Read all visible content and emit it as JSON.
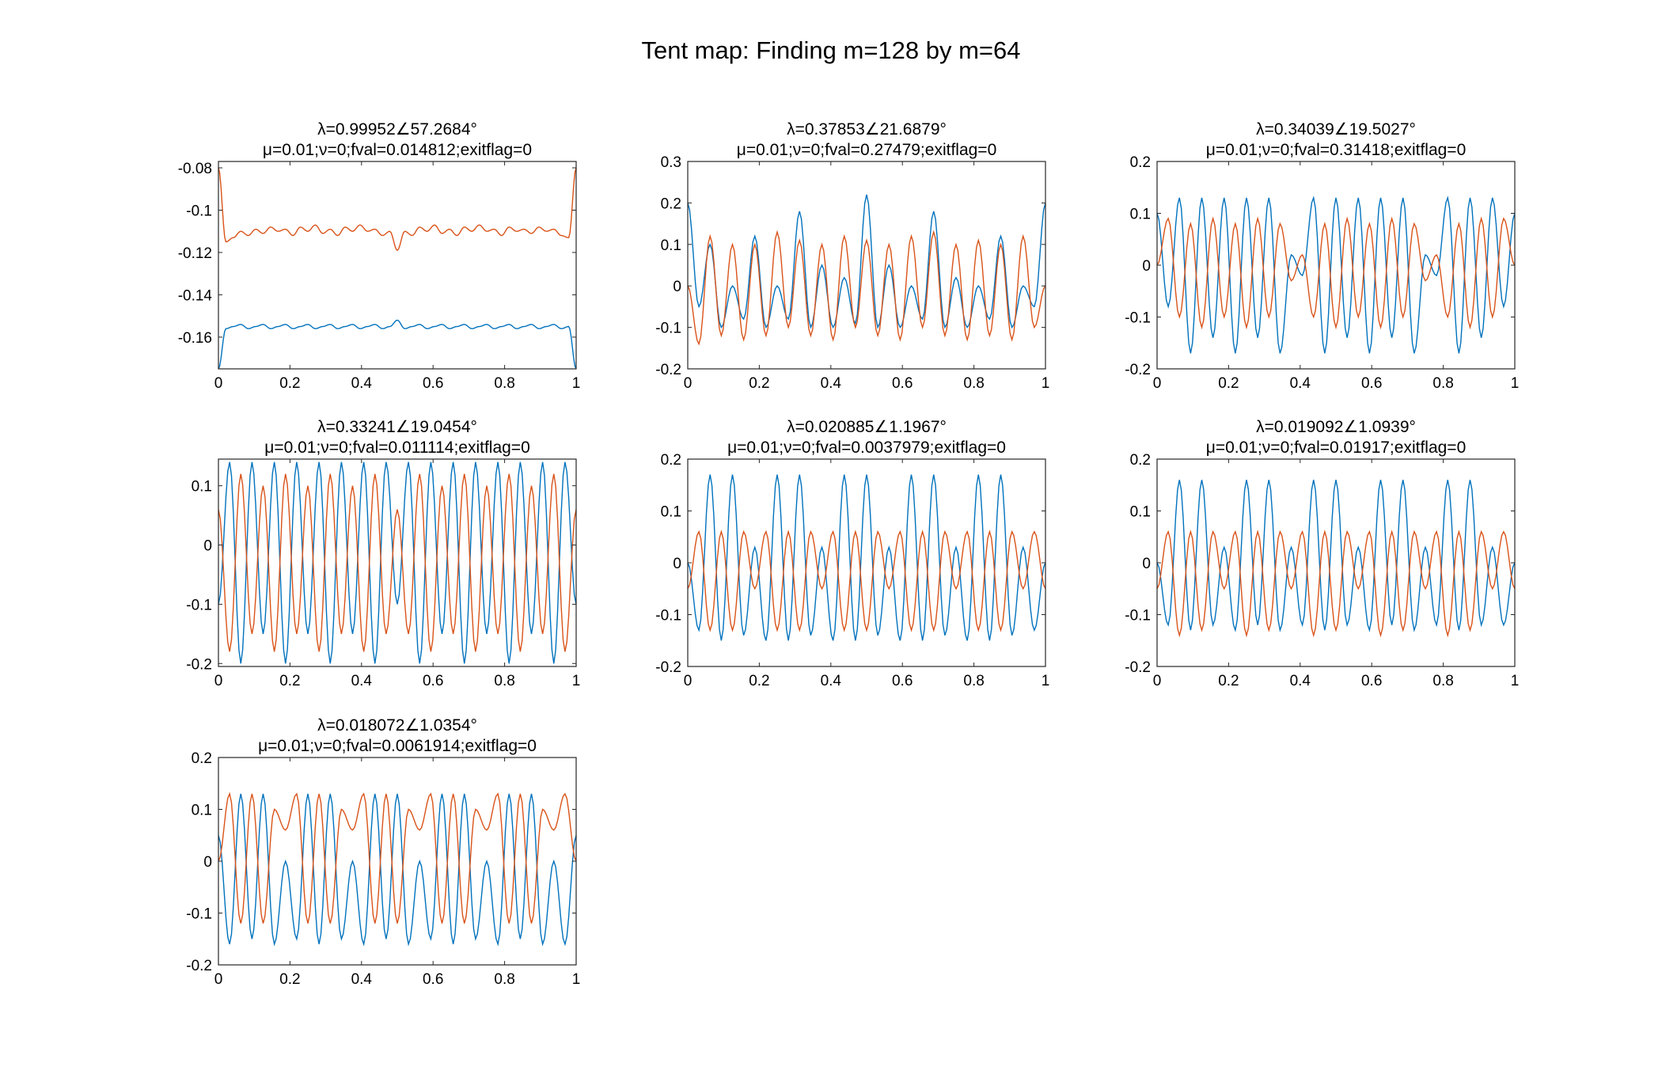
{
  "figure": {
    "suptitle": "Tent map: Finding m=128 by m=64"
  },
  "colors": {
    "series_blue": "#0072BD",
    "series_orange": "#D95319",
    "axes": "#262626",
    "background": "#ffffff"
  },
  "chart_data": [
    {
      "type": "line",
      "title": [
        "λ=0.99952∠57.2684°",
        "μ=0.01;ν=0;fval=0.014812;exitflag=0"
      ],
      "xlim": [
        0,
        1
      ],
      "ylim": [
        -0.175,
        -0.077
      ],
      "xticks": [
        0,
        0.2,
        0.4,
        0.6,
        0.8,
        1
      ],
      "yticks": [
        -0.16,
        -0.14,
        -0.12,
        -0.1,
        -0.08
      ],
      "series": [
        {
          "color": "blue",
          "values": [
            -0.175,
            -0.156,
            -0.155,
            -0.154,
            -0.156,
            -0.155,
            -0.154,
            -0.156,
            -0.155,
            -0.154,
            -0.156,
            -0.155,
            -0.154,
            -0.156,
            -0.155,
            -0.154,
            -0.156,
            -0.155,
            -0.154,
            -0.156,
            -0.155,
            -0.154,
            -0.156,
            -0.155,
            -0.152,
            -0.156,
            -0.155,
            -0.154,
            -0.156,
            -0.155,
            -0.154,
            -0.156,
            -0.155,
            -0.154,
            -0.156,
            -0.155,
            -0.154,
            -0.156,
            -0.155,
            -0.154,
            -0.156,
            -0.155,
            -0.154,
            -0.156,
            -0.155,
            -0.154,
            -0.156,
            -0.155,
            -0.175
          ]
        },
        {
          "color": "orange",
          "values": [
            -0.08,
            -0.115,
            -0.113,
            -0.11,
            -0.112,
            -0.109,
            -0.111,
            -0.108,
            -0.11,
            -0.109,
            -0.112,
            -0.108,
            -0.11,
            -0.107,
            -0.111,
            -0.109,
            -0.112,
            -0.108,
            -0.11,
            -0.107,
            -0.11,
            -0.109,
            -0.112,
            -0.11,
            -0.119,
            -0.11,
            -0.112,
            -0.108,
            -0.11,
            -0.107,
            -0.111,
            -0.109,
            -0.112,
            -0.108,
            -0.11,
            -0.107,
            -0.11,
            -0.109,
            -0.112,
            -0.108,
            -0.11,
            -0.109,
            -0.111,
            -0.108,
            -0.11,
            -0.109,
            -0.112,
            -0.113,
            -0.08
          ]
        }
      ]
    },
    {
      "type": "line",
      "title": [
        "λ=0.37853∠21.6879°",
        "μ=0.01;ν=0;fval=0.27479;exitflag=0"
      ],
      "xlim": [
        0,
        1
      ],
      "ylim": [
        -0.2,
        0.3
      ],
      "xticks": [
        0,
        0.2,
        0.4,
        0.6,
        0.8,
        1
      ],
      "yticks": [
        -0.2,
        -0.1,
        0,
        0.1,
        0.2,
        0.3
      ],
      "series": [
        {
          "color": "blue",
          "values": [
            0.2,
            -0.05,
            0.1,
            -0.1,
            0.0,
            -0.08,
            0.12,
            -0.1,
            0.0,
            -0.08,
            0.18,
            -0.1,
            0.05,
            -0.1,
            0.02,
            -0.09,
            0.22,
            -0.1,
            0.05,
            -0.1,
            0.0,
            -0.08,
            0.18,
            -0.1,
            0.02,
            -0.1,
            0.0,
            -0.08,
            0.12,
            -0.1,
            0.0,
            -0.05,
            0.2
          ]
        },
        {
          "color": "orange",
          "values": [
            0.0,
            -0.14,
            0.12,
            -0.12,
            0.1,
            -0.13,
            0.1,
            -0.12,
            0.13,
            -0.1,
            0.11,
            -0.12,
            0.1,
            -0.13,
            0.12,
            -0.1,
            0.11,
            -0.12,
            0.1,
            -0.13,
            0.12,
            -0.1,
            0.13,
            -0.12,
            0.1,
            -0.13,
            0.11,
            -0.12,
            0.1,
            -0.13,
            0.12,
            -0.1,
            0.0
          ]
        }
      ]
    },
    {
      "type": "line",
      "title": [
        "λ=0.34039∠19.5027°",
        "μ=0.01;ν=0;fval=0.31418;exitflag=0"
      ],
      "xlim": [
        0,
        1
      ],
      "ylim": [
        -0.2,
        0.2
      ],
      "xticks": [
        0,
        0.2,
        0.4,
        0.6,
        0.8,
        1
      ],
      "yticks": [
        -0.2,
        -0.1,
        0,
        0.1,
        0.2
      ],
      "series": [
        {
          "color": "blue",
          "values": [
            0.1,
            -0.08,
            0.13,
            -0.17,
            0.13,
            -0.14,
            0.13,
            -0.17,
            0.13,
            -0.14,
            0.13,
            -0.17,
            0.02,
            -0.02,
            0.13,
            -0.17,
            0.13,
            -0.14,
            0.13,
            -0.17,
            0.13,
            -0.14,
            0.13,
            -0.17,
            0.02,
            -0.02,
            0.13,
            -0.17,
            0.13,
            -0.14,
            0.13,
            -0.08,
            0.1
          ]
        },
        {
          "color": "orange",
          "values": [
            0.0,
            0.09,
            -0.1,
            0.08,
            -0.12,
            0.09,
            -0.1,
            0.08,
            -0.12,
            0.09,
            -0.1,
            0.08,
            -0.03,
            0.02,
            -0.1,
            0.08,
            -0.12,
            0.09,
            -0.1,
            0.08,
            -0.12,
            0.09,
            -0.1,
            0.08,
            -0.03,
            0.02,
            -0.1,
            0.08,
            -0.12,
            0.09,
            -0.1,
            0.09,
            0.0
          ]
        }
      ]
    },
    {
      "type": "line",
      "title": [
        "λ=0.33241∠19.0454°",
        "μ=0.01;ν=0;fval=0.011114;exitflag=0"
      ],
      "xlim": [
        0,
        1
      ],
      "ylim": [
        -0.205,
        0.145
      ],
      "xticks": [
        0,
        0.2,
        0.4,
        0.6,
        0.8,
        1
      ],
      "yticks": [
        -0.2,
        -0.1,
        0,
        0.1
      ],
      "series": [
        {
          "color": "blue",
          "values": [
            -0.1,
            0.14,
            -0.2,
            0.14,
            -0.15,
            0.14,
            -0.2,
            0.14,
            -0.15,
            0.14,
            -0.2,
            0.14,
            -0.15,
            0.14,
            -0.2,
            0.14,
            -0.1,
            0.14,
            -0.2,
            0.14,
            -0.15,
            0.14,
            -0.2,
            0.14,
            -0.15,
            0.14,
            -0.2,
            0.14,
            -0.15,
            0.14,
            -0.2,
            0.14,
            -0.1
          ]
        },
        {
          "color": "orange",
          "values": [
            0.06,
            -0.18,
            0.12,
            -0.15,
            0.1,
            -0.18,
            0.12,
            -0.15,
            0.1,
            -0.18,
            0.12,
            -0.15,
            0.1,
            -0.18,
            0.12,
            -0.15,
            0.06,
            -0.15,
            0.12,
            -0.18,
            0.1,
            -0.15,
            0.12,
            -0.18,
            0.1,
            -0.15,
            0.12,
            -0.18,
            0.1,
            -0.15,
            0.12,
            -0.18,
            0.06
          ]
        }
      ]
    },
    {
      "type": "line",
      "title": [
        "λ=0.020885∠1.1967°",
        "μ=0.01;ν=0;fval=0.0037979;exitflag=0"
      ],
      "xlim": [
        0,
        1
      ],
      "ylim": [
        -0.2,
        0.2
      ],
      "xticks": [
        0,
        0.2,
        0.4,
        0.6,
        0.8,
        1
      ],
      "yticks": [
        -0.2,
        -0.1,
        0,
        0.1,
        0.2
      ],
      "series": [
        {
          "color": "blue",
          "values": [
            0.0,
            -0.13,
            0.17,
            -0.15,
            0.17,
            -0.14,
            0.03,
            -0.15,
            0.17,
            -0.15,
            0.17,
            -0.14,
            0.03,
            -0.15,
            0.17,
            -0.15,
            0.17,
            -0.14,
            0.03,
            -0.15,
            0.17,
            -0.15,
            0.17,
            -0.14,
            0.03,
            -0.15,
            0.17,
            -0.15,
            0.17,
            -0.14,
            0.03,
            -0.13,
            0.0
          ]
        },
        {
          "color": "orange",
          "values": [
            -0.05,
            0.06,
            -0.13,
            0.06,
            -0.13,
            0.06,
            -0.05,
            0.06,
            -0.13,
            0.06,
            -0.13,
            0.06,
            -0.05,
            0.06,
            -0.13,
            0.06,
            -0.13,
            0.06,
            -0.05,
            0.06,
            -0.13,
            0.06,
            -0.13,
            0.06,
            -0.05,
            0.06,
            -0.13,
            0.06,
            -0.13,
            0.06,
            -0.05,
            0.06,
            -0.05
          ]
        }
      ]
    },
    {
      "type": "line",
      "title": [
        "λ=0.019092∠1.0939°",
        "μ=0.01;ν=0;fval=0.01917;exitflag=0"
      ],
      "xlim": [
        0,
        1
      ],
      "ylim": [
        -0.2,
        0.2
      ],
      "xticks": [
        0,
        0.2,
        0.4,
        0.6,
        0.8,
        1
      ],
      "yticks": [
        -0.2,
        -0.1,
        0,
        0.1,
        0.2
      ],
      "series": [
        {
          "color": "blue",
          "values": [
            0.0,
            -0.12,
            0.16,
            -0.13,
            0.16,
            -0.12,
            0.03,
            -0.13,
            0.16,
            -0.12,
            0.16,
            -0.13,
            0.03,
            -0.12,
            0.16,
            -0.13,
            0.16,
            -0.12,
            0.03,
            -0.13,
            0.16,
            -0.12,
            0.16,
            -0.13,
            0.03,
            -0.12,
            0.16,
            -0.13,
            0.16,
            -0.12,
            0.03,
            -0.12,
            0.0
          ]
        },
        {
          "color": "orange",
          "values": [
            -0.05,
            0.06,
            -0.14,
            0.06,
            -0.13,
            0.06,
            -0.05,
            0.06,
            -0.14,
            0.06,
            -0.13,
            0.06,
            -0.05,
            0.06,
            -0.14,
            0.06,
            -0.13,
            0.06,
            -0.05,
            0.06,
            -0.14,
            0.06,
            -0.13,
            0.06,
            -0.05,
            0.06,
            -0.14,
            0.06,
            -0.13,
            0.06,
            -0.05,
            0.06,
            -0.05
          ]
        }
      ]
    },
    {
      "type": "line",
      "title": [
        "λ=0.018072∠1.0354°",
        "μ=0.01;ν=0;fval=0.0061914;exitflag=0"
      ],
      "xlim": [
        0,
        1
      ],
      "ylim": [
        -0.2,
        0.2
      ],
      "xticks": [
        0,
        0.2,
        0.4,
        0.6,
        0.8,
        1
      ],
      "yticks": [
        -0.2,
        -0.1,
        0,
        0.1,
        0.2
      ],
      "series": [
        {
          "color": "blue",
          "values": [
            0.05,
            -0.16,
            0.13,
            -0.15,
            0.13,
            -0.16,
            0.0,
            -0.15,
            0.13,
            -0.16,
            0.13,
            -0.15,
            0.0,
            -0.16,
            0.13,
            -0.15,
            0.13,
            -0.16,
            0.0,
            -0.15,
            0.13,
            -0.16,
            0.13,
            -0.15,
            0.0,
            -0.16,
            0.13,
            -0.15,
            0.13,
            -0.16,
            0.0,
            -0.16,
            0.05
          ]
        },
        {
          "color": "orange",
          "values": [
            0.0,
            0.13,
            -0.12,
            0.13,
            -0.12,
            0.1,
            0.06,
            0.13,
            -0.12,
            0.13,
            -0.12,
            0.1,
            0.06,
            0.13,
            -0.12,
            0.13,
            -0.12,
            0.1,
            0.06,
            0.13,
            -0.12,
            0.13,
            -0.12,
            0.1,
            0.06,
            0.13,
            -0.12,
            0.13,
            -0.12,
            0.1,
            0.06,
            0.13,
            0.0
          ]
        }
      ]
    }
  ]
}
